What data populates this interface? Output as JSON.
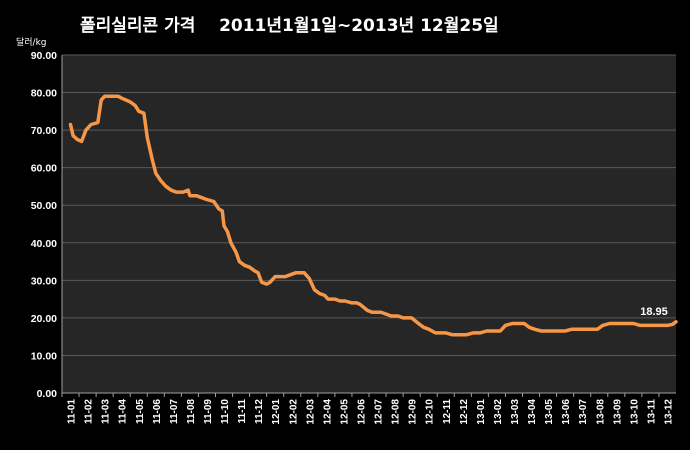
{
  "chart_data": {
    "type": "line",
    "title": "폴리실리콘 가격    2011년1월1일~2013년 12월25일",
    "ylabel": "달러/kg",
    "xlabel": "",
    "ylim": [
      0,
      90
    ],
    "y_ticks": [
      "0.00",
      "10.00",
      "20.00",
      "30.00",
      "40.00",
      "50.00",
      "60.00",
      "70.00",
      "80.00",
      "90.00"
    ],
    "categories": [
      "11-01",
      "11-02",
      "11-03",
      "11-04",
      "11-05",
      "11-06",
      "11-07",
      "11-08",
      "11-09",
      "11-10",
      "11-11",
      "11-12",
      "12-01",
      "12-02",
      "12-03",
      "12-04",
      "12-05",
      "12-06",
      "12-07",
      "12-08",
      "12-09",
      "12-10",
      "12-11",
      "12-12",
      "13-01",
      "13-02",
      "13-03",
      "13-04",
      "13-05",
      "13-06",
      "13-07",
      "13-08",
      "13-09",
      "13-10",
      "13-11",
      "13-12"
    ],
    "grid": true,
    "legend": "none",
    "end_label": "18.95",
    "series": [
      {
        "color": "#f79646",
        "points": [
          [
            0.0,
            71.5
          ],
          [
            0.15,
            68.5
          ],
          [
            0.4,
            67.5
          ],
          [
            0.65,
            67.0
          ],
          [
            0.9,
            70.0
          ],
          [
            1.2,
            71.5
          ],
          [
            1.6,
            72.0
          ],
          [
            1.8,
            78.0
          ],
          [
            2.0,
            79.0
          ],
          [
            2.5,
            79.0
          ],
          [
            2.8,
            79.0
          ],
          [
            3.0,
            78.5
          ],
          [
            3.5,
            77.5
          ],
          [
            3.8,
            76.5
          ],
          [
            4.0,
            75.0
          ],
          [
            4.3,
            74.5
          ],
          [
            4.5,
            68.0
          ],
          [
            4.8,
            62.0
          ],
          [
            5.0,
            58.5
          ],
          [
            5.3,
            56.5
          ],
          [
            5.6,
            55.0
          ],
          [
            5.9,
            54.0
          ],
          [
            6.2,
            53.5
          ],
          [
            6.6,
            53.5
          ],
          [
            6.9,
            54.0
          ],
          [
            7.0,
            52.5
          ],
          [
            7.4,
            52.5
          ],
          [
            7.7,
            52.0
          ],
          [
            8.0,
            51.5
          ],
          [
            8.4,
            51.0
          ],
          [
            8.7,
            49.0
          ],
          [
            8.9,
            48.5
          ],
          [
            9.0,
            44.5
          ],
          [
            9.2,
            43.0
          ],
          [
            9.4,
            40.0
          ],
          [
            9.7,
            37.5
          ],
          [
            9.9,
            35.0
          ],
          [
            10.2,
            34.0
          ],
          [
            10.5,
            33.5
          ],
          [
            10.8,
            32.5
          ],
          [
            11.0,
            32.0
          ],
          [
            11.2,
            29.5
          ],
          [
            11.5,
            29.0
          ],
          [
            11.7,
            29.5
          ],
          [
            12.0,
            31.0
          ],
          [
            12.3,
            31.0
          ],
          [
            12.6,
            31.0
          ],
          [
            12.9,
            31.5
          ],
          [
            13.2,
            32.0
          ],
          [
            13.7,
            32.0
          ],
          [
            14.0,
            30.5
          ],
          [
            14.3,
            27.5
          ],
          [
            14.6,
            26.5
          ],
          [
            14.9,
            26.0
          ],
          [
            15.1,
            25.0
          ],
          [
            15.5,
            25.0
          ],
          [
            15.8,
            24.5
          ],
          [
            16.1,
            24.5
          ],
          [
            16.5,
            24.0
          ],
          [
            16.8,
            24.0
          ],
          [
            17.0,
            23.5
          ],
          [
            17.4,
            22.0
          ],
          [
            17.7,
            21.5
          ],
          [
            18.2,
            21.5
          ],
          [
            18.5,
            21.0
          ],
          [
            18.8,
            20.5
          ],
          [
            19.2,
            20.5
          ],
          [
            19.5,
            20.0
          ],
          [
            20.0,
            20.0
          ],
          [
            20.4,
            18.5
          ],
          [
            20.7,
            17.5
          ],
          [
            21.0,
            17.0
          ],
          [
            21.4,
            16.0
          ],
          [
            21.7,
            16.0
          ],
          [
            22.0,
            16.0
          ],
          [
            22.4,
            15.5
          ],
          [
            22.8,
            15.5
          ],
          [
            23.2,
            15.5
          ],
          [
            23.6,
            16.0
          ],
          [
            24.0,
            16.0
          ],
          [
            24.4,
            16.5
          ],
          [
            24.8,
            16.5
          ],
          [
            25.2,
            16.5
          ],
          [
            25.5,
            18.0
          ],
          [
            25.9,
            18.5
          ],
          [
            26.2,
            18.5
          ],
          [
            26.6,
            18.5
          ],
          [
            26.9,
            17.5
          ],
          [
            27.2,
            17.0
          ],
          [
            27.6,
            16.5
          ],
          [
            28.0,
            16.5
          ],
          [
            28.5,
            16.5
          ],
          [
            29.0,
            16.5
          ],
          [
            29.4,
            17.0
          ],
          [
            29.8,
            17.0
          ],
          [
            30.2,
            17.0
          ],
          [
            30.6,
            17.0
          ],
          [
            30.9,
            17.0
          ],
          [
            31.2,
            18.0
          ],
          [
            31.6,
            18.5
          ],
          [
            32.0,
            18.5
          ],
          [
            32.5,
            18.5
          ],
          [
            33.0,
            18.5
          ],
          [
            33.4,
            18.0
          ],
          [
            33.8,
            18.0
          ],
          [
            34.2,
            18.0
          ],
          [
            34.6,
            18.0
          ],
          [
            35.0,
            18.0
          ],
          [
            35.3,
            18.3
          ],
          [
            35.5,
            18.95
          ]
        ]
      }
    ]
  }
}
